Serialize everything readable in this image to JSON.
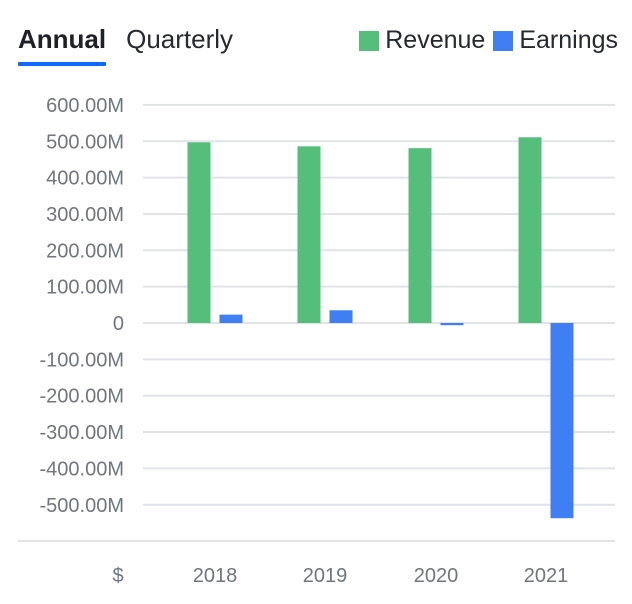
{
  "tabs": [
    {
      "label": "Annual",
      "active": true
    },
    {
      "label": "Quarterly",
      "active": false
    }
  ],
  "currency_symbol": "$",
  "chart_data": {
    "type": "bar",
    "categories": [
      "2018",
      "2019",
      "2020",
      "2021"
    ],
    "series": [
      {
        "name": "Revenue",
        "color": "#55be7b",
        "values": [
          497,
          486,
          481,
          511
        ]
      },
      {
        "name": "Earnings",
        "color": "#3f7ff3",
        "values": [
          23,
          35,
          -6,
          -537
        ]
      }
    ],
    "ylim": [
      -600,
      600
    ],
    "y_ticks": [
      {
        "value": 600,
        "label": "600.00M"
      },
      {
        "value": 500,
        "label": "500.00M"
      },
      {
        "value": 400,
        "label": "400.00M"
      },
      {
        "value": 300,
        "label": "300.00M"
      },
      {
        "value": 200,
        "label": "200.00M"
      },
      {
        "value": 100,
        "label": "100.00M"
      },
      {
        "value": 0,
        "label": "0"
      },
      {
        "value": -100,
        "label": "-100.00M"
      },
      {
        "value": -200,
        "label": "-200.00M"
      },
      {
        "value": -300,
        "label": "-300.00M"
      },
      {
        "value": -400,
        "label": "-400.00M"
      },
      {
        "value": -500,
        "label": "-500.00M"
      }
    ],
    "grid": true,
    "legend_position": "top-right"
  }
}
